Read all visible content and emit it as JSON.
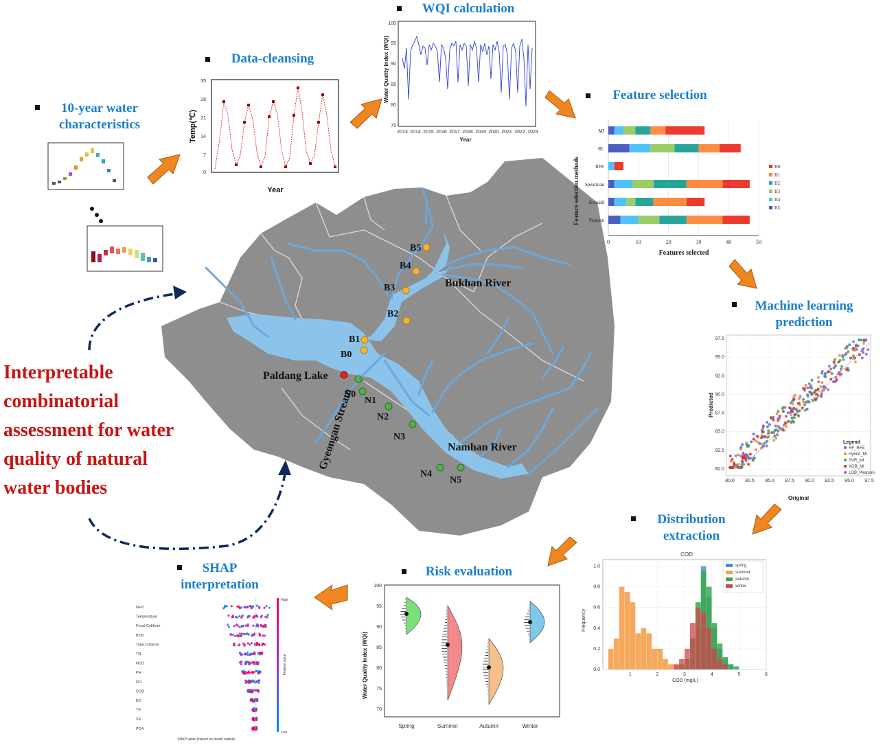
{
  "headline": {
    "lines": [
      "Interpretable",
      "combinatorial",
      "assessment for water",
      "quality of natural",
      "water bodies"
    ]
  },
  "steps": {
    "water_characteristics": "10-year water characteristics",
    "data_cleansing": "Data-cleansing",
    "wqi_calculation": "WQI calculation",
    "feature_selection": "Feature selection",
    "machine_learning": "Machine learning prediction",
    "distribution": "Distribution extraction",
    "risk": "Risk evaluation",
    "shap": "SHAP interpretation"
  },
  "map": {
    "labels": {
      "bukhan": "Bukhan River",
      "namhan": "Namhan River",
      "paldang": "Paldang Lake",
      "gyeongan": "Gyeongan Stream"
    },
    "sites_b": [
      "B5",
      "B4",
      "B3",
      "B2",
      "B1",
      "B0"
    ],
    "sites_n": [
      "N0",
      "N1",
      "N2",
      "N3",
      "N4",
      "N5"
    ],
    "colors": {
      "land": "#8e8e8e",
      "water": "#8cc3ea",
      "b_site": "#f2b53a",
      "n_site": "#55b04a",
      "lake_site": "#e02020"
    }
  },
  "panels": {
    "data_cleansing": {
      "ylabel": "Temp(℃)",
      "xlabel": "Year",
      "yticks": [
        "35",
        "28",
        "21",
        "14",
        "7",
        "0"
      ]
    },
    "wqi": {
      "ylabel": "Water Quality Index (WQI)",
      "xlabel": "Year",
      "yticks": [
        "100",
        "95",
        "90",
        "85",
        "80",
        "75"
      ],
      "xticks": [
        "2013",
        "2014",
        "2015",
        "2016",
        "2017",
        "2018",
        "2019",
        "2020",
        "2021",
        "2022",
        "2023"
      ]
    },
    "risk": {
      "ylabel": "Water Quality Index (WQI)",
      "yticks": [
        "100",
        "95",
        "90",
        "85",
        "80",
        "75",
        "70"
      ]
    },
    "shap": {
      "xlabel": "SHAP value (impact on model output)",
      "cbar_high": "High",
      "cbar_low": "Low",
      "cbar_label": "Feature value"
    }
  },
  "chart_data": [
    {
      "type": "bar",
      "title": "Feature selection",
      "stacked": true,
      "orientation": "horizontal",
      "ylabel": "Feature selection methods",
      "xlabel": "Features selected",
      "xlim": [
        0,
        50
      ],
      "xticks": [
        0,
        10,
        20,
        30,
        40,
        50
      ],
      "categories": [
        "MI",
        "RL",
        "RFE",
        "Spearman",
        "Kendall",
        "Pearson"
      ],
      "series": [
        {
          "name": "B5",
          "color": "#4a5fc1",
          "values": [
            2,
            7,
            0,
            2,
            2,
            4
          ]
        },
        {
          "name": "B4",
          "color": "#4fc3f7",
          "values": [
            3,
            7,
            2,
            6,
            4,
            6
          ]
        },
        {
          "name": "B3",
          "color": "#9ccc65",
          "values": [
            4,
            8,
            0,
            7,
            3,
            7
          ]
        },
        {
          "name": "B2",
          "color": "#26a69a",
          "values": [
            5,
            8,
            0,
            11,
            6,
            9
          ]
        },
        {
          "name": "B1",
          "color": "#ff8c42",
          "values": [
            5,
            7,
            0,
            12,
            11,
            12
          ]
        },
        {
          "name": "B0",
          "color": "#ea3b2e",
          "values": [
            13,
            7,
            3,
            9,
            6,
            9
          ]
        }
      ],
      "legend": "right"
    },
    {
      "type": "scatter",
      "title": "Machine learning prediction",
      "xlabel": "Original",
      "ylabel": "Predicted",
      "xlim": [
        80,
        97.5
      ],
      "ylim": [
        80,
        97.5
      ],
      "xticks": [
        "80.0",
        "82.5",
        "85.0",
        "87.5",
        "90.0",
        "92.5",
        "95.0",
        "97.5"
      ],
      "yticks": [
        "97.5",
        "95.0",
        "92.5",
        "90.0",
        "87.5",
        "85.0",
        "82.5",
        "80.0"
      ],
      "legend_title": "Legend",
      "series": [
        {
          "name": "RF_RFE",
          "color": "#4a6fd0"
        },
        {
          "name": "Hybrid_MI",
          "color": "#f08a3c"
        },
        {
          "name": "SVR_MI",
          "color": "#3aa84a"
        },
        {
          "name": "XGB_MI",
          "color": "#d0303a"
        },
        {
          "name": "LGB_Pearson",
          "color": "#8a6ac8"
        }
      ]
    },
    {
      "type": "bar",
      "title": "COD",
      "xlabel": "COD (mg/L)",
      "ylabel": "Frequency",
      "xlim": [
        0,
        6
      ],
      "ylim": [
        0,
        1.05
      ],
      "xticks": [
        "1",
        "2",
        "3",
        "4",
        "5",
        "6"
      ],
      "yticks": [
        "0.0",
        "0.2",
        "0.4",
        "0.6",
        "0.8",
        "1.0"
      ],
      "series": [
        {
          "name": "spring",
          "color": "#4a8fd0"
        },
        {
          "name": "summer",
          "color": "#f5a04a"
        },
        {
          "name": "autumn",
          "color": "#3aa84a"
        },
        {
          "name": "winter",
          "color": "#d0444a"
        }
      ],
      "legend": "top-right"
    },
    {
      "type": "violin",
      "title": "Risk evaluation",
      "ylabel": "Water Quality Index (WQI)",
      "ylim": [
        68,
        100
      ],
      "categories": [
        "Spring",
        "Summer",
        "Autumn",
        "Winter"
      ],
      "medians": [
        93,
        85.5,
        80,
        91
      ],
      "colors": [
        "#7be07b",
        "#f28a8a",
        "#f7c08a",
        "#7fc8ea"
      ]
    },
    {
      "type": "scatter",
      "title": "SHAP interpretation",
      "categories": [
        "NH3",
        "Temperature",
        "Fecal Coliform",
        "BOD",
        "Total Coliform",
        "TN",
        "NO3",
        "PH",
        "DO",
        "COD",
        "EC",
        "TP",
        "SS",
        "PO4"
      ]
    }
  ]
}
